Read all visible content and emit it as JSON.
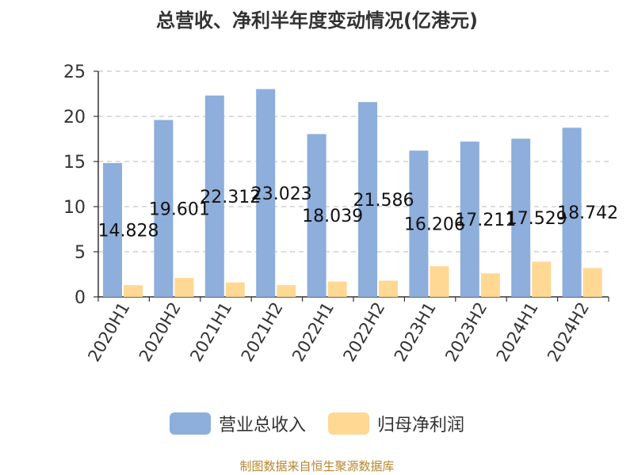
{
  "chart_data": {
    "type": "bar",
    "title": "总营收、净利半年度变动情况(亿港元)",
    "categories": [
      "2020H1",
      "2020H2",
      "2021H1",
      "2021H2",
      "2022H1",
      "2022H2",
      "2023H1",
      "2023H2",
      "2024H1",
      "2024H2"
    ],
    "series": [
      {
        "name": "营业总收入",
        "color": "#8eaedb",
        "values": [
          14.828,
          19.601,
          22.312,
          23.023,
          18.039,
          21.586,
          16.206,
          17.211,
          17.529,
          18.742
        ],
        "show_labels": true
      },
      {
        "name": "归母净利润",
        "color": "#ffd894",
        "values": [
          1.3,
          2.1,
          1.6,
          1.3,
          1.7,
          1.8,
          3.4,
          2.6,
          3.9,
          3.2
        ],
        "show_labels": false
      }
    ],
    "ylim": [
      0,
      25
    ],
    "yticks": [
      0,
      5,
      10,
      15,
      20,
      25
    ],
    "grid": true,
    "legend_position": "bottom"
  },
  "source": "制图数据来自恒生聚源数据库"
}
